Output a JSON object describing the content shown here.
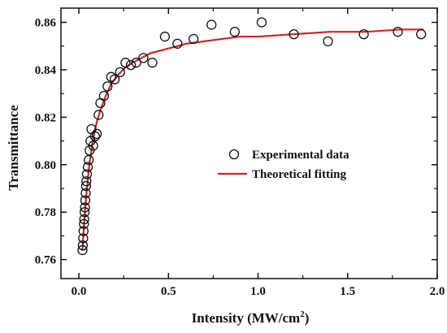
{
  "chart_data": {
    "type": "scatter",
    "title": "",
    "xlabel": "Intensity (MW/cm",
    "xlabel_superscript": "2",
    "xlabel_suffix": ")",
    "ylabel": "Transmittance",
    "xlim": [
      -0.1,
      2.0
    ],
    "ylim": [
      0.752,
      0.866
    ],
    "x_ticks": [
      0.0,
      0.5,
      1.0,
      1.5,
      2.0
    ],
    "x_tick_labels": [
      "0.0",
      "0.5",
      "1.0",
      "1.5",
      "2.0"
    ],
    "y_ticks": [
      0.76,
      0.78,
      0.8,
      0.82,
      0.84,
      0.86
    ],
    "y_tick_labels": [
      "0.76",
      "0.78",
      "0.80",
      "0.82",
      "0.84",
      "0.86"
    ],
    "grid": false,
    "legend_position": "center-right",
    "series": [
      {
        "name": "Experimental data",
        "kind": "scatter",
        "marker": "open-circle",
        "color": "#111111",
        "x": [
          0.02,
          0.022,
          0.024,
          0.026,
          0.028,
          0.03,
          0.032,
          0.034,
          0.036,
          0.038,
          0.04,
          0.042,
          0.045,
          0.05,
          0.055,
          0.06,
          0.065,
          0.07,
          0.08,
          0.09,
          0.1,
          0.11,
          0.12,
          0.14,
          0.16,
          0.18,
          0.2,
          0.23,
          0.26,
          0.29,
          0.32,
          0.36,
          0.41,
          0.48,
          0.55,
          0.64,
          0.74,
          0.87,
          1.02,
          1.2,
          1.39,
          1.59,
          1.78,
          1.91
        ],
        "y": [
          0.764,
          0.766,
          0.769,
          0.772,
          0.775,
          0.777,
          0.78,
          0.782,
          0.785,
          0.788,
          0.791,
          0.793,
          0.796,
          0.799,
          0.802,
          0.806,
          0.81,
          0.815,
          0.808,
          0.812,
          0.813,
          0.821,
          0.826,
          0.829,
          0.833,
          0.837,
          0.836,
          0.839,
          0.843,
          0.842,
          0.843,
          0.845,
          0.843,
          0.854,
          0.851,
          0.853,
          0.859,
          0.856,
          0.86,
          0.855,
          0.852,
          0.855,
          0.856,
          0.855
        ]
      },
      {
        "name": "Theoretical fitting",
        "kind": "line",
        "color": "#c8282a",
        "x": [
          0.02,
          0.025,
          0.03,
          0.035,
          0.04,
          0.05,
          0.06,
          0.07,
          0.08,
          0.1,
          0.12,
          0.15,
          0.18,
          0.22,
          0.26,
          0.3,
          0.35,
          0.4,
          0.5,
          0.6,
          0.7,
          0.8,
          0.9,
          1.0,
          1.2,
          1.4,
          1.6,
          1.8,
          1.92
        ],
        "y": [
          0.764,
          0.77,
          0.776,
          0.781,
          0.786,
          0.794,
          0.801,
          0.806,
          0.811,
          0.818,
          0.823,
          0.829,
          0.834,
          0.838,
          0.841,
          0.843,
          0.845,
          0.847,
          0.849,
          0.851,
          0.852,
          0.853,
          0.854,
          0.854,
          0.855,
          0.856,
          0.856,
          0.857,
          0.857
        ]
      }
    ]
  }
}
